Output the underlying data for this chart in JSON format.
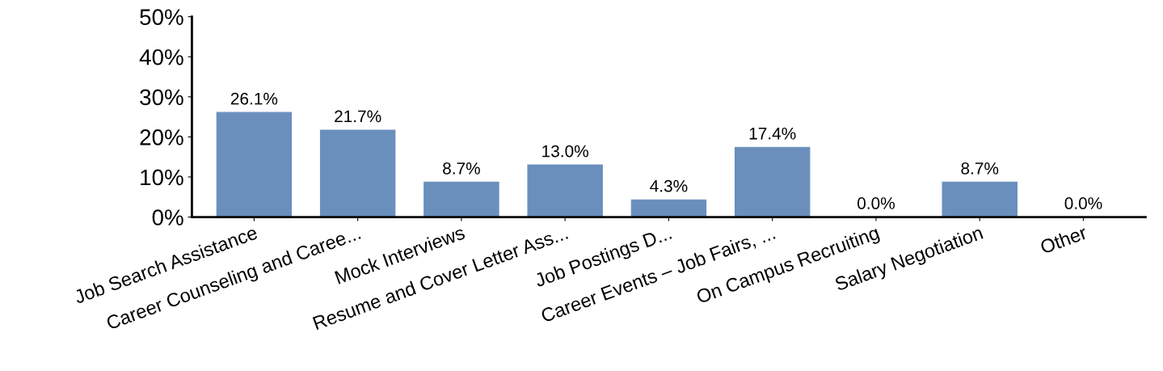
{
  "chart_data": {
    "type": "bar",
    "categories": [
      "Job Search Assistance",
      "Career Counseling and Caree...",
      "Mock Interviews",
      "Resume and Cover Letter Ass...",
      "Job Postings D...",
      "Career Events – Job Fairs, ...",
      "On Campus Recruiting",
      "Salary Negotiation",
      "Other"
    ],
    "values": [
      26.1,
      21.7,
      8.7,
      13.0,
      4.3,
      17.4,
      0.0,
      8.7,
      0.0
    ],
    "value_labels": [
      "26.1%",
      "21.7%",
      "8.7%",
      "13.0%",
      "4.3%",
      "17.4%",
      "0.0%",
      "8.7%",
      "0.0%"
    ],
    "color": "#6a8fbd",
    "ylim": [
      0,
      50
    ],
    "yticks": [
      {
        "value": 0,
        "label": "0%"
      },
      {
        "value": 10,
        "label": "10%"
      },
      {
        "value": 20,
        "label": "20%"
      },
      {
        "value": 30,
        "label": "30%"
      },
      {
        "value": 40,
        "label": "40%"
      },
      {
        "value": 50,
        "label": "50%"
      }
    ],
    "grid": false,
    "legend": false
  }
}
